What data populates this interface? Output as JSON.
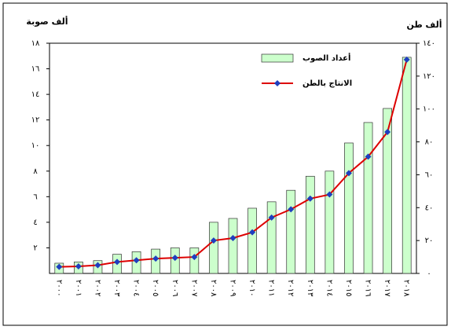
{
  "chart_data": {
    "type": "combo",
    "y_label": "ألف صوبة",
    "y2_label": "ألف طن",
    "categories": [
      "٢٠٠٠",
      "٢٠٠١",
      "٢٠٠٢",
      "٢٠٠٣",
      "٢٠٠٤",
      "٢٠٠٥",
      "٢٠٠٦",
      "٢٠٠٧",
      "٢٠٠٨",
      "٢٠٠٩",
      "٢٠١٠",
      "٢٠١١",
      "٢٠١٢",
      "٢٠١٣",
      "٢٠١٤",
      "٢٠١٥",
      "٢٠١٦",
      "٢٠١٧",
      "٢٠١٨"
    ],
    "series": [
      {
        "name": "أعداد الصوب",
        "type": "bar",
        "axis": "y",
        "color": "#ccffcc",
        "edge": "#333333",
        "values": [
          0.8,
          0.9,
          1.0,
          1.5,
          1.7,
          1.9,
          2.0,
          2.0,
          4.0,
          4.3,
          5.1,
          5.6,
          6.5,
          7.6,
          8.0,
          10.2,
          11.8,
          12.9,
          16.9
        ]
      },
      {
        "name": "الانتاج بالطن",
        "type": "line",
        "axis": "y2",
        "color": "#dd0000",
        "marker_color": "#1f3fbf",
        "values": [
          4,
          4.3,
          5,
          7,
          8,
          9,
          9.5,
          10,
          20,
          21.5,
          25,
          34,
          39,
          45.5,
          48,
          61,
          71,
          86,
          130
        ]
      }
    ],
    "ylim": [
      0,
      18
    ],
    "yticks": [
      {
        "value": 2,
        "label": "٢"
      },
      {
        "value": 4,
        "label": "٤"
      },
      {
        "value": 6,
        "label": "٦"
      },
      {
        "value": 8,
        "label": "٨"
      },
      {
        "value": 10,
        "label": "١٠"
      },
      {
        "value": 12,
        "label": "١٢"
      },
      {
        "value": 14,
        "label": "١٤"
      },
      {
        "value": 16,
        "label": "١٦"
      },
      {
        "value": 18,
        "label": "١٨"
      }
    ],
    "y2lim": [
      0,
      140
    ],
    "y2ticks": [
      {
        "value": 0,
        "label": "٠"
      },
      {
        "value": 20,
        "label": "٢٠"
      },
      {
        "value": 40,
        "label": "٤٠"
      },
      {
        "value": 60,
        "label": "٦٠"
      },
      {
        "value": 80,
        "label": "٨٠"
      },
      {
        "value": 100,
        "label": "١٠٠"
      },
      {
        "value": 120,
        "label": "١٢٠"
      },
      {
        "value": 140,
        "label": "١٤٠"
      }
    ],
    "grid": false
  }
}
